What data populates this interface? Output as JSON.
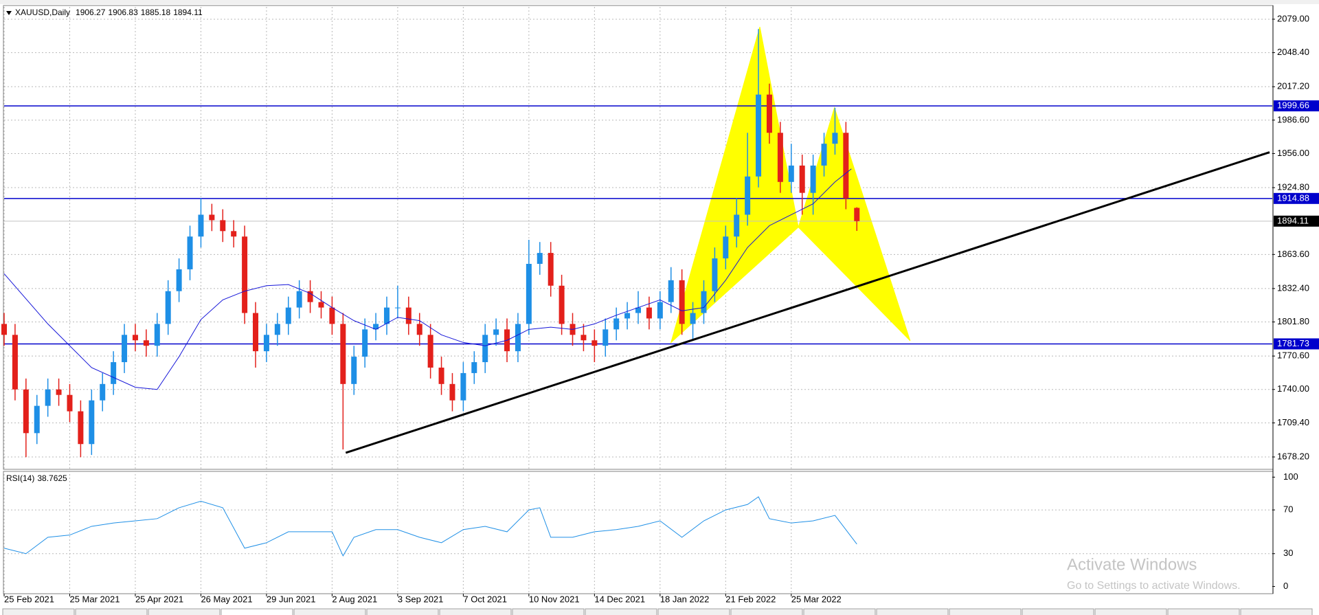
{
  "chart_data": [
    {
      "type": "candlestick",
      "title": "XAUUSD,Daily",
      "xlim": [
        0,
        464
      ],
      "ylim": [
        1667.5,
        2090.3
      ],
      "grid": true,
      "up_color": "#1e8fe6",
      "down_color": "#e3201b",
      "yticks": [
        {
          "value": 1678.2,
          "label": "1678.20"
        },
        {
          "value": 1709.4,
          "label": "1709.40"
        },
        {
          "value": 1740,
          "label": "1740.00"
        },
        {
          "value": 1770.6,
          "label": "1770.60"
        },
        {
          "value": 1801.8,
          "label": "1801.80"
        },
        {
          "value": 1832.4,
          "label": "1832.40"
        },
        {
          "value": 1863.6,
          "label": "1863.60"
        },
        {
          "value": 1924.8,
          "label": "1924.80"
        },
        {
          "value": 1956,
          "label": "1956.00"
        },
        {
          "value": 1986.6,
          "label": "1986.60"
        },
        {
          "value": 2017.2,
          "label": "2017.20"
        },
        {
          "value": 2048.4,
          "label": "2048.40"
        },
        {
          "value": 2079,
          "label": "2079.00"
        }
      ],
      "xticks": [
        {
          "value": 0,
          "label": "25 Feb 2021"
        },
        {
          "value": 24,
          "label": "25 Mar 2021"
        },
        {
          "value": 48,
          "label": "25 Apr 2021"
        },
        {
          "value": 72,
          "label": "26 May 2021"
        },
        {
          "value": 96,
          "label": "29 Jun 2021"
        },
        {
          "value": 120,
          "label": "2 Aug 2021"
        },
        {
          "value": 144,
          "label": "3 Sep 2021"
        },
        {
          "value": 168,
          "label": "7 Oct 2021"
        },
        {
          "value": 192,
          "label": "10 Nov 2021"
        },
        {
          "value": 216,
          "label": "14 Dec 2021"
        },
        {
          "value": 240,
          "label": "18 Jan 2022"
        },
        {
          "value": 264,
          "label": "21 Feb 2022"
        },
        {
          "value": 288,
          "label": "25 Mar 2022"
        }
      ],
      "x": [
        0,
        4,
        8,
        12,
        16,
        20,
        24,
        28,
        32,
        36,
        40,
        44,
        48,
        52,
        56,
        60,
        64,
        68,
        72,
        76,
        80,
        84,
        88,
        92,
        96,
        100,
        104,
        108,
        112,
        116,
        120,
        124,
        128,
        132,
        136,
        140,
        144,
        148,
        152,
        156,
        160,
        164,
        168,
        172,
        176,
        180,
        184,
        188,
        192,
        196,
        200,
        204,
        208,
        212,
        216,
        220,
        224,
        228,
        232,
        236,
        240,
        244,
        248,
        252,
        256,
        260,
        264,
        268,
        272,
        276,
        280,
        284,
        288,
        292,
        296,
        300,
        304,
        308,
        312
      ],
      "open": [
        1800,
        1790,
        1740,
        1700,
        1725,
        1740,
        1735,
        1720,
        1690,
        1730,
        1745,
        1765,
        1790,
        1785,
        1780,
        1800,
        1830,
        1850,
        1880,
        1900,
        1895,
        1885,
        1880,
        1810,
        1775,
        1790,
        1800,
        1815,
        1830,
        1820,
        1815,
        1800,
        1745,
        1770,
        1795,
        1800,
        1815,
        1815,
        1800,
        1790,
        1760,
        1745,
        1730,
        1755,
        1765,
        1790,
        1795,
        1775,
        1800,
        1855,
        1865,
        1835,
        1800,
        1790,
        1785,
        1780,
        1795,
        1805,
        1810,
        1815,
        1805,
        1820,
        1840,
        1800,
        1810,
        1830,
        1860,
        1880,
        1900,
        1935,
        2010,
        1975,
        1930,
        1945,
        1920,
        1945,
        1965,
        1975,
        1906.27
      ],
      "high": [
        1810,
        1800,
        1750,
        1735,
        1750,
        1750,
        1745,
        1730,
        1740,
        1755,
        1775,
        1800,
        1800,
        1795,
        1810,
        1840,
        1860,
        1890,
        1915,
        1910,
        1905,
        1895,
        1890,
        1820,
        1800,
        1810,
        1825,
        1840,
        1840,
        1830,
        1825,
        1810,
        1780,
        1805,
        1810,
        1825,
        1835,
        1825,
        1810,
        1800,
        1770,
        1755,
        1765,
        1775,
        1800,
        1805,
        1805,
        1810,
        1877,
        1875,
        1875,
        1845,
        1810,
        1800,
        1795,
        1805,
        1815,
        1820,
        1830,
        1825,
        1830,
        1852,
        1850,
        1820,
        1840,
        1870,
        1890,
        1915,
        1975,
        2070,
        2020,
        1985,
        1965,
        1955,
        1955,
        1975,
        1998,
        1985,
        1906.83
      ],
      "low": [
        1780,
        1730,
        1678,
        1690,
        1715,
        1725,
        1710,
        1678,
        1680,
        1720,
        1735,
        1755,
        1775,
        1770,
        1770,
        1790,
        1820,
        1840,
        1870,
        1885,
        1875,
        1870,
        1800,
        1760,
        1765,
        1780,
        1790,
        1805,
        1810,
        1805,
        1790,
        1685,
        1735,
        1760,
        1785,
        1790,
        1805,
        1790,
        1780,
        1750,
        1735,
        1720,
        1720,
        1745,
        1755,
        1780,
        1765,
        1765,
        1790,
        1845,
        1825,
        1790,
        1780,
        1775,
        1765,
        1770,
        1785,
        1795,
        1800,
        1795,
        1795,
        1810,
        1790,
        1785,
        1800,
        1820,
        1850,
        1870,
        1890,
        1925,
        1965,
        1920,
        1920,
        1900,
        1900,
        1935,
        1955,
        1905,
        1885.18
      ],
      "close": [
        1790,
        1740,
        1700,
        1725,
        1740,
        1735,
        1720,
        1690,
        1730,
        1745,
        1765,
        1790,
        1785,
        1780,
        1800,
        1830,
        1850,
        1880,
        1900,
        1895,
        1885,
        1880,
        1810,
        1775,
        1790,
        1800,
        1815,
        1830,
        1820,
        1815,
        1800,
        1745,
        1770,
        1795,
        1800,
        1815,
        1815,
        1800,
        1790,
        1760,
        1745,
        1730,
        1755,
        1765,
        1790,
        1795,
        1775,
        1800,
        1855,
        1865,
        1835,
        1800,
        1790,
        1785,
        1780,
        1795,
        1805,
        1810,
        1815,
        1805,
        1820,
        1840,
        1800,
        1810,
        1830,
        1860,
        1880,
        1900,
        1935,
        2010,
        1975,
        1930,
        1945,
        1920,
        1945,
        1965,
        1975,
        1915,
        1894.11
      ],
      "moving_average": {
        "color": "#1414d8",
        "x": [
          0,
          16,
          32,
          48,
          56,
          64,
          72,
          80,
          88,
          96,
          104,
          112,
          120,
          128,
          136,
          144,
          152,
          160,
          168,
          176,
          184,
          192,
          200,
          208,
          216,
          224,
          232,
          240,
          248,
          256,
          264,
          272,
          280,
          288,
          296,
          304,
          310
        ],
        "values": [
          1846,
          1800,
          1760,
          1742,
          1740,
          1770,
          1804,
          1822,
          1830,
          1835,
          1836,
          1828,
          1815,
          1803,
          1795,
          1806,
          1803,
          1790,
          1783,
          1780,
          1785,
          1795,
          1797,
          1795,
          1800,
          1808,
          1815,
          1822,
          1812,
          1815,
          1840,
          1870,
          1890,
          1900,
          1910,
          1930,
          1942
        ]
      },
      "levels": [
        {
          "value": 1999.66,
          "color": "#0000cc"
        },
        {
          "value": 1914.88,
          "color": "#0000cc"
        },
        {
          "value": 1781.73,
          "color": "#0000cc"
        }
      ],
      "trendline": {
        "color": "#000000",
        "x": [
          125,
          463
        ],
        "y": [
          1682,
          1957.2
        ]
      },
      "pattern": {
        "color": "#ffff00",
        "x": [
          244,
          276.5,
          290.6,
          303.8,
          331.5
        ],
        "y": [
          1783,
          2072,
          1888.6,
          1998,
          1784.6
        ]
      }
    },
    {
      "type": "line",
      "title": "RSI(14)",
      "last_value": 38.7625,
      "color": "#1e8fe6",
      "xlim": [
        0,
        464
      ],
      "ylim": [
        -6,
        104
      ],
      "yticks": [
        0,
        30,
        70,
        100
      ],
      "x": [
        0,
        8,
        16,
        24,
        32,
        40,
        48,
        56,
        64,
        72,
        80,
        88,
        96,
        104,
        112,
        120,
        124,
        128,
        136,
        144,
        152,
        160,
        168,
        176,
        184,
        192,
        196,
        200,
        208,
        216,
        224,
        232,
        240,
        248,
        256,
        264,
        272,
        276,
        280,
        288,
        296,
        304,
        312
      ],
      "values": [
        35,
        30,
        45,
        47,
        55,
        58,
        60,
        62,
        72,
        78,
        72,
        35,
        40,
        50,
        50,
        50,
        28,
        45,
        52,
        52,
        45,
        40,
        52,
        55,
        50,
        70,
        72,
        45,
        45,
        50,
        52,
        55,
        60,
        45,
        60,
        70,
        75,
        82,
        62,
        58,
        60,
        65,
        38.7625
      ]
    }
  ],
  "watermark": {
    "title": "Activate Windows",
    "subtitle": "Go to Settings to activate Windows."
  }
}
